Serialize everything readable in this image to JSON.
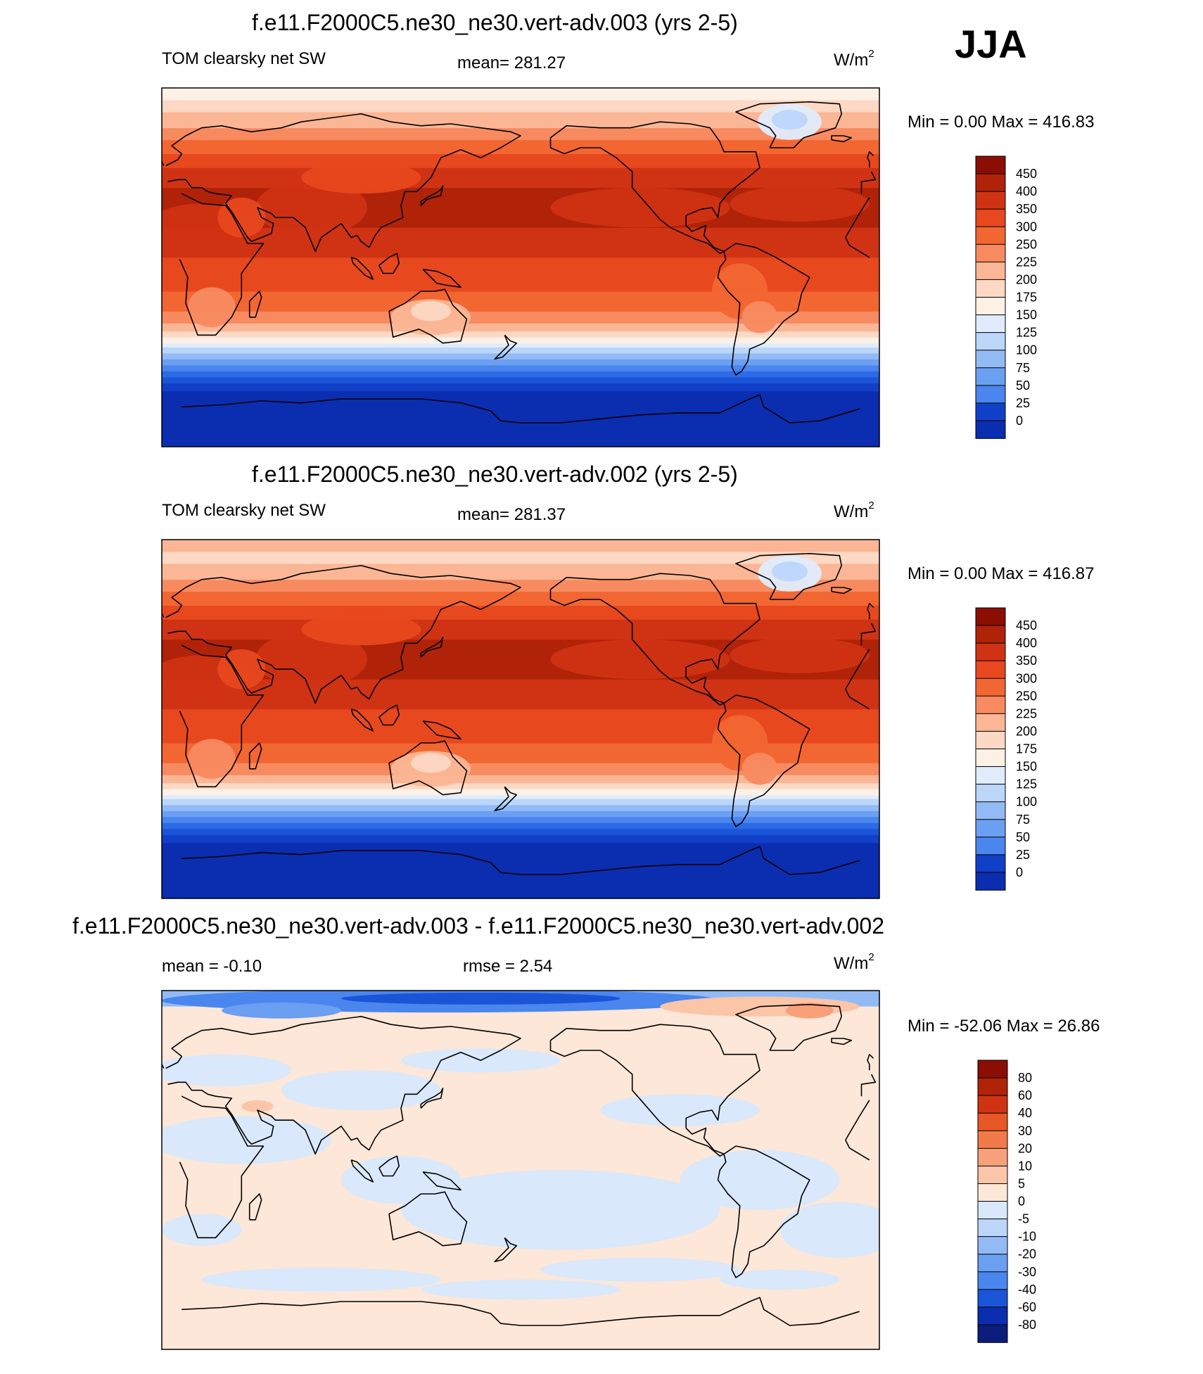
{
  "season": "JJA",
  "colors": {
    "coast": "#000000",
    "abs_scale": [
      "#0a1d7a",
      "#0b2db0",
      "#1140c8",
      "#1a55d8",
      "#2c6ae6",
      "#4a86ee",
      "#6b9ff2",
      "#92bbf6",
      "#bcd6fa",
      "#e0ecfc",
      "#fdf1e6",
      "#fdd8c4",
      "#fbb695",
      "#f88a60",
      "#f26632",
      "#e8481e",
      "#d03313",
      "#b02309",
      "#8a0e04"
    ],
    "diff_scale": [
      "#0a1d7a",
      "#0b2db0",
      "#1140c8",
      "#1a55d8",
      "#2c6ae6",
      "#4a86ee",
      "#6b9ff2",
      "#92bbf6",
      "#d9e8fb",
      "#fde7d8",
      "#fbc5a8",
      "#f8a07a",
      "#f27a4a",
      "#e85726",
      "#d03313",
      "#b02309",
      "#8a0e04"
    ]
  },
  "chart_data": [
    {
      "type": "heatmap",
      "title": "f.e11.F2000C5.ne30_ne30.vert-adv.003 (yrs 2-5)",
      "variable": "TOM clearsky net SW",
      "mean_label": "mean= 281.27",
      "units": "W/m",
      "units_sup": "2",
      "minmax": "Min =    0.00 Max = 416.83",
      "min": 0.0,
      "max": 416.83,
      "colorbar_levels": [
        "450",
        "400",
        "350",
        "300",
        "250",
        "225",
        "200",
        "175",
        "150",
        "125",
        "100",
        "75",
        "50",
        "25",
        "0"
      ]
    },
    {
      "type": "heatmap",
      "title": "f.e11.F2000C5.ne30_ne30.vert-adv.002 (yrs 2-5)",
      "variable": "TOM clearsky net SW",
      "mean_label": "mean= 281.37",
      "units": "W/m",
      "units_sup": "2",
      "minmax": "Min =    0.00 Max = 416.87",
      "min": 0.0,
      "max": 416.87,
      "colorbar_levels": [
        "450",
        "400",
        "350",
        "300",
        "250",
        "225",
        "200",
        "175",
        "150",
        "125",
        "100",
        "75",
        "50",
        "25",
        "0"
      ]
    },
    {
      "type": "heatmap",
      "title": "f.e11.F2000C5.ne30_ne30.vert-adv.003 - f.e11.F2000C5.ne30_ne30.vert-adv.002",
      "mean_label": "mean =  -0.10",
      "rmse_label": "rmse =   2.54",
      "units": "W/m",
      "units_sup": "2",
      "minmax": "Min = -52.06 Max =  26.86",
      "min": -52.06,
      "max": 26.86,
      "colorbar_levels": [
        "80",
        "60",
        "40",
        "30",
        "20",
        "10",
        "5",
        "0",
        "-5",
        "-10",
        "-20",
        "-30",
        "-40",
        "-60",
        "-80"
      ]
    }
  ]
}
